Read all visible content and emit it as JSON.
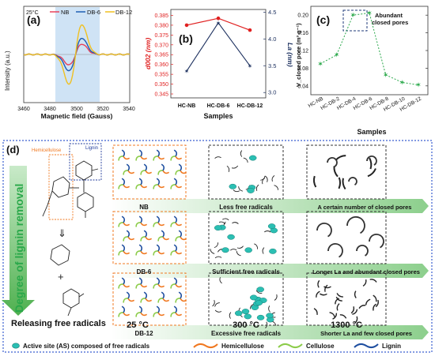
{
  "panel_a": {
    "label": "(a)",
    "temperature": "25°C",
    "legend": [
      "NB",
      "DB-6",
      "DB-12"
    ],
    "xlabel": "Magnetic field (Gauss)",
    "ylabel": "Intensity (a.u.)",
    "xticks": [
      "3460",
      "3480",
      "3500",
      "3520",
      "3540"
    ],
    "colors": {
      "NB": "#e8425a",
      "DB-6": "#1f5fb3",
      "DB-12": "#f0c020"
    }
  },
  "panel_b": {
    "label": "(b)",
    "xlabel": "Samples",
    "ylabel_left": "d002 (nm)",
    "ylabel_right": "La (nm)",
    "yticks_left": [
      "0.345",
      "0.350",
      "0.355",
      "0.360",
      "0.365",
      "0.370",
      "0.375",
      "0.380",
      "0.385"
    ],
    "yticks_right": [
      "3.0",
      "3.5",
      "4.0",
      "4.5"
    ],
    "colors": {
      "left": "#e02020",
      "right": "#1b2f5e"
    }
  },
  "panel_c": {
    "label": "(c)",
    "annotation_line1": "Abundant",
    "annotation_line2": "closed pores",
    "xlabel": "Samples",
    "ylabel": "V_closed pore (m³ g⁻¹)",
    "yticks": [
      "0.04",
      "0.08",
      "0.12",
      "0.16",
      "0.20"
    ],
    "color": "#2aa84a"
  },
  "chart_data": [
    {
      "type": "line",
      "panel": "(a)",
      "xlabel": "Magnetic field (Gauss)",
      "ylabel": "Intensity (a.u.)",
      "xlim": [
        3460,
        3550
      ],
      "x_center": 3504,
      "series": [
        {
          "name": "NB",
          "peak_to_peak": 0.35
        },
        {
          "name": "DB-6",
          "peak_to_peak": 0.55
        },
        {
          "name": "DB-12",
          "peak_to_peak": 1.0
        }
      ]
    },
    {
      "type": "line",
      "panel": "(b)",
      "categories": [
        "HC-NB",
        "HC-DB-6",
        "HC-DB-12"
      ],
      "xlabel": "Samples",
      "series": [
        {
          "name": "d002",
          "axis": "left",
          "values": [
            0.38,
            0.3835,
            0.3775
          ]
        },
        {
          "name": "La",
          "axis": "right",
          "values": [
            3.4,
            4.3,
            3.5
          ]
        }
      ],
      "ylim_left": [
        0.343,
        0.388
      ],
      "ylim_right": [
        2.9,
        4.55
      ]
    },
    {
      "type": "line",
      "panel": "(c)",
      "categories": [
        "HC-NB",
        "HC-DB-2",
        "HC-DB-4",
        "HC-DB-6",
        "HC-DB-8",
        "HC-DB-10",
        "HC-DB-12"
      ],
      "xlabel": "Samples",
      "ylabel": "V_closed pore (m³ g⁻¹)",
      "values": [
        0.09,
        0.11,
        0.2,
        0.205,
        0.065,
        0.048,
        0.042
      ],
      "ylim": [
        0.02,
        0.22
      ]
    }
  ],
  "panel_d": {
    "label": "(d)",
    "hemicellulose": "Hemicellulose",
    "lignin": "Lignin",
    "vertical_label": "Degree of lignin removal",
    "releasing": "Releasing free radicals",
    "temps": [
      "25 °C",
      "300 °C",
      "1300 °C"
    ],
    "rows": [
      {
        "sample": "NB",
        "radicals": "Less free radicals",
        "pores": "A certain number of closed pores"
      },
      {
        "sample": "DB-6",
        "radicals": "Sufficient free radicals",
        "pores": "Longer La and abundant closed pores"
      },
      {
        "sample": "DB-12",
        "radicals": "Excessive free radicals",
        "pores": "Shorter La and few closed pores"
      }
    ],
    "legend": {
      "active_site": "Active site (AS) composed of free radicals",
      "hemicellulose": "Hemicellulose",
      "cellulose": "Cellulose",
      "lignin": "Lignin"
    }
  }
}
